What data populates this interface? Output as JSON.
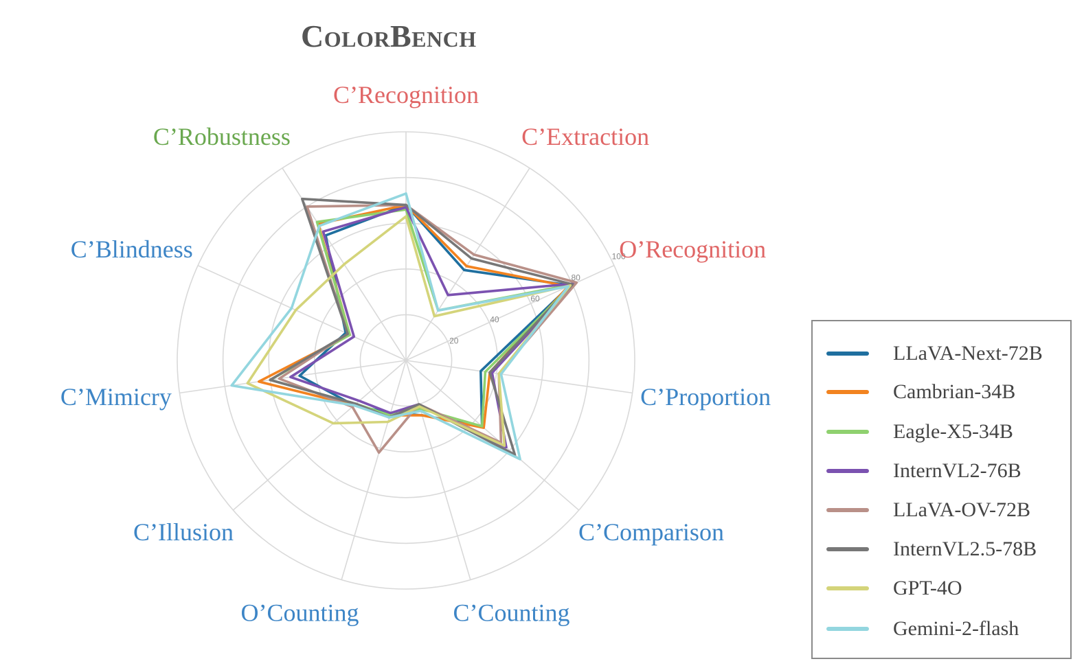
{
  "title": "ColorBench",
  "chart_data": {
    "type": "radar",
    "title": "ColorBench",
    "axes": [
      {
        "name": "C’Recognition",
        "color": "#e06666"
      },
      {
        "name": "C’Extraction",
        "color": "#e06666"
      },
      {
        "name": "O’Recognition",
        "color": "#e06666"
      },
      {
        "name": "C’Proportion",
        "color": "#3d85c6"
      },
      {
        "name": "C’Comparison",
        "color": "#3d85c6"
      },
      {
        "name": "C’Counting",
        "color": "#3d85c6"
      },
      {
        "name": "O’Counting",
        "color": "#3d85c6"
      },
      {
        "name": "C’Illusion",
        "color": "#3d85c6"
      },
      {
        "name": "C’Mimicry",
        "color": "#3d85c6"
      },
      {
        "name": "C’Blindness",
        "color": "#3d85c6"
      },
      {
        "name": "C’Robustness",
        "color": "#6aa84f"
      }
    ],
    "radial_ticks": [
      20,
      40,
      60,
      80,
      100
    ],
    "rlim": [
      0,
      100
    ],
    "grid": true,
    "legend_position": "lower-right",
    "series": [
      {
        "name": "LLaVA-Next-72B",
        "color": "#1f6f9f",
        "values": [
          68,
          47,
          79,
          33,
          44,
          25,
          24,
          30,
          47,
          29,
          65
        ]
      },
      {
        "name": "Cambrian-34B",
        "color": "#f28320",
        "values": [
          68,
          49,
          78,
          37,
          45,
          25,
          25,
          30,
          65,
          27,
          71
        ]
      },
      {
        "name": "Eagle-X5-34B",
        "color": "#8fd16f",
        "values": [
          66,
          26,
          80,
          35,
          44,
          22,
          25,
          29,
          60,
          27,
          72
        ]
      },
      {
        "name": "InternVL2-76B",
        "color": "#7b52b0",
        "values": [
          67,
          34,
          81,
          38,
          58,
          20,
          24,
          27,
          51,
          25,
          67
        ]
      },
      {
        "name": "LLaVA-OV-72B",
        "color": "#b99088",
        "values": [
          68,
          55,
          82,
          41,
          55,
          20,
          42,
          31,
          56,
          28,
          80
        ]
      },
      {
        "name": "InternVL2.5-78B",
        "color": "#777777",
        "values": [
          68,
          53,
          80,
          37,
          63,
          20,
          26,
          29,
          60,
          28,
          84
        ]
      },
      {
        "name": "GPT-4O",
        "color": "#d4d47a",
        "values": [
          63,
          23,
          79,
          41,
          57,
          21,
          28,
          42,
          70,
          53,
          50
        ]
      },
      {
        "name": "Gemini-2-flash",
        "color": "#93d6df",
        "values": [
          73,
          26,
          78,
          42,
          66,
          23,
          26,
          30,
          77,
          55,
          70
        ]
      }
    ]
  }
}
